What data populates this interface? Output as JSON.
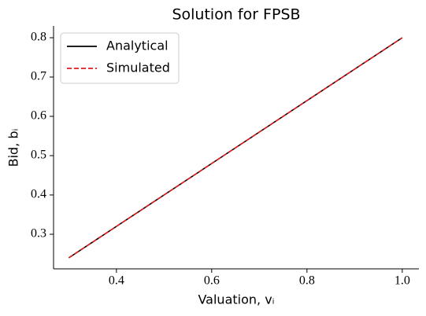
{
  "chart_data": {
    "type": "line",
    "title": "Solution for FPSB",
    "x_label": "Valuation, vᵢ",
    "y_label": "Bid, bᵢ",
    "x": [
      0.3,
      0.4,
      0.5,
      0.6,
      0.7,
      0.8,
      0.9,
      1.0
    ],
    "series": [
      {
        "name": "Analytical",
        "color": "#000000",
        "dash": false,
        "values": [
          0.24,
          0.32,
          0.4,
          0.48,
          0.56,
          0.64,
          0.72,
          0.8
        ]
      },
      {
        "name": "Simulated",
        "color": "#e31a1c",
        "dash": true,
        "values": [
          0.24,
          0.32,
          0.4,
          0.48,
          0.56,
          0.64,
          0.72,
          0.8
        ]
      }
    ],
    "xlim": [
      0.268,
      1.035
    ],
    "ylim": [
      0.212,
      0.83
    ],
    "xticks": [
      0.4,
      0.6,
      0.8,
      {
        "value": 1,
        "label": "1.0"
      }
    ],
    "yticks": [
      0.3,
      0.4,
      0.5,
      0.6,
      0.7,
      0.8
    ],
    "grid": false,
    "legend": "upper left"
  }
}
